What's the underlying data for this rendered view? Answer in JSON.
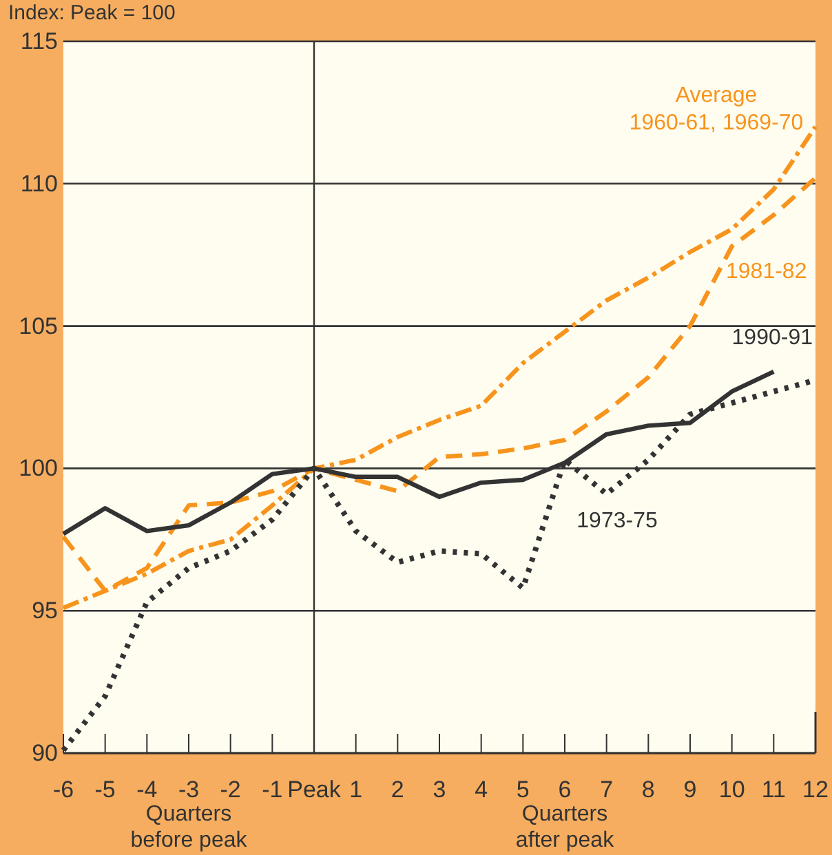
{
  "chart_data": {
    "type": "line",
    "ylabel": "Index: Peak = 100",
    "x": [
      -6,
      -5,
      -4,
      -3,
      -2,
      -1,
      0,
      1,
      2,
      3,
      4,
      5,
      6,
      7,
      8,
      9,
      10,
      11,
      12
    ],
    "xlim": [
      -6,
      12
    ],
    "xticks": [
      -6,
      -5,
      -4,
      -3,
      -2,
      -1,
      {
        "value": 0,
        "label": "Peak"
      },
      1,
      2,
      3,
      4,
      5,
      6,
      7,
      8,
      9,
      10,
      11,
      12
    ],
    "ylim": [
      90,
      115
    ],
    "yticks": [
      90,
      95,
      100,
      105,
      110,
      115
    ],
    "grid": "y",
    "marker": "none",
    "ref_lines": [
      {
        "axis": "x",
        "value": 0,
        "color": "#333333"
      }
    ],
    "series": [
      {
        "name": "Average 1960-61, 1969-70",
        "color": "#f7941d",
        "line_style": "dashdot",
        "values": [
          95.1,
          95.7,
          96.3,
          97.1,
          97.5,
          98.7,
          100,
          100.3,
          101.1,
          101.7,
          102.2,
          103.7,
          104.8,
          105.9,
          106.7,
          107.6,
          108.4,
          109.8,
          112.0
        ]
      },
      {
        "name": "1981-82",
        "color": "#f7941d",
        "line_style": "dashed",
        "values": [
          97.6,
          95.7,
          96.5,
          98.7,
          98.8,
          99.2,
          100,
          99.6,
          99.2,
          100.4,
          100.5,
          100.7,
          101.0,
          102.0,
          103.2,
          105.0,
          107.8,
          108.9,
          110.2
        ]
      },
      {
        "name": "1990-91",
        "color": "#333333",
        "line_style": "solid",
        "values": [
          97.7,
          98.6,
          97.8,
          98.0,
          98.8,
          99.8,
          100,
          99.7,
          99.7,
          99.0,
          99.5,
          99.6,
          100.2,
          101.2,
          101.5,
          101.6,
          102.7,
          103.4,
          null
        ]
      },
      {
        "name": "1973-75",
        "color": "#333333",
        "line_style": "dotted",
        "values": [
          90.1,
          92.0,
          95.3,
          96.5,
          97.1,
          98.2,
          100,
          97.8,
          96.7,
          97.1,
          97.0,
          95.8,
          100.3,
          99.1,
          100.3,
          101.9,
          102.3,
          102.7,
          103.1
        ]
      }
    ],
    "annotations": [
      "Quarters before peak",
      "Quarters after peak"
    ]
  }
}
